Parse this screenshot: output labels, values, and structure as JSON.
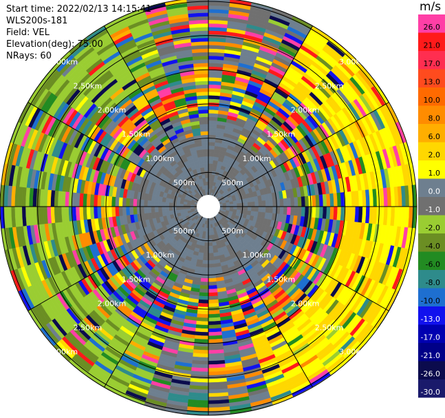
{
  "header": {
    "start_time": "Start time: 2022/02/13 14:15:41",
    "instrument": "WLS200s-181",
    "field": "Field: VEL",
    "elevation": "Elevation(deg): 75.00",
    "nrays": "NRays: 60"
  },
  "colorbar": {
    "unit": "m/s",
    "ticks": [
      "26.0",
      "21.0",
      "17.0",
      "13.0",
      "10.0",
      "8.0",
      "6.0",
      "2.0",
      "1.0",
      "0.0",
      "-1.0",
      "-2.0",
      "-4.0",
      "-6.0",
      "-8.0",
      "-10.0",
      "-13.0",
      "-17.0",
      "-21.0",
      "-26.0",
      "-30.0"
    ],
    "colors": [
      "#ff3fa6",
      "#ff1a1a",
      "#ff2e50",
      "#ff4b1e",
      "#ff6a00",
      "#ff8c00",
      "#ffae00",
      "#ffd700",
      "#ffff00",
      "#6e7f8f",
      "#707070",
      "#9acd32",
      "#6b8e23",
      "#228b22",
      "#2e8b8b",
      "#1e6fd0",
      "#1111ee",
      "#0000b0",
      "#000088",
      "#0b0b4d",
      "#1a1a6b"
    ]
  },
  "chart_data": {
    "type": "heatmap",
    "projection": "polar (PPI)",
    "field": "VEL",
    "units": "m/s",
    "n_rays": 60,
    "range_ring_labels": [
      "500m",
      "1.00km",
      "1.50km",
      "2.00km",
      "2.50km",
      "3.00km"
    ],
    "range_rings_km": [
      0.5,
      1.0,
      1.5,
      2.0,
      2.5,
      3.0
    ],
    "range_max_km": 3.05,
    "color_scale_ticks_ms": [
      26.0,
      21.0,
      17.0,
      13.0,
      10.0,
      8.0,
      6.0,
      2.0,
      1.0,
      0.0,
      -1.0,
      -2.0,
      -4.0,
      -6.0,
      -8.0,
      -10.0,
      -13.0,
      -17.0,
      -21.0,
      -26.0,
      -30.0
    ]
  }
}
